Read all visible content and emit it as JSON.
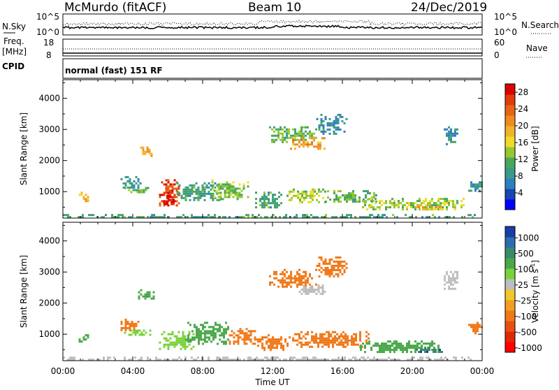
{
  "header": {
    "station": "McMurdo (fitACF)",
    "beam": "Beam 10",
    "date": "24/Dec/2019"
  },
  "noise_panel": {
    "left_label": "N.Sky",
    "right_label": "N.Search",
    "y_ticks_left": [
      "10^5",
      "10^0"
    ],
    "y_ticks_right": [
      "10^5",
      "10^0"
    ]
  },
  "freq_panel": {
    "left_label_line1": "Freq.",
    "left_label_line2": "[MHz]",
    "right_label": "Nave",
    "y_ticks_left": [
      "18",
      "8"
    ],
    "y_ticks_right": [
      "60",
      "0"
    ]
  },
  "cpid_panel": {
    "left_label": "CPID",
    "mode_text": "normal (fast) 151 RF"
  },
  "chart_data": [
    {
      "type": "heatmap",
      "panel": "power",
      "ylabel": "Slant Range [km]",
      "xlabel": "Time UT",
      "y_ticks": [
        "1000",
        "2000",
        "3000",
        "4000"
      ],
      "ylim": [
        150,
        4600
      ],
      "xlim": [
        0,
        24
      ],
      "colorbar": {
        "label": "Power [dB]",
        "ticks": [
          "4",
          "8",
          "12",
          "16",
          "20",
          "24",
          "28"
        ],
        "range": [
          0,
          30
        ],
        "colors": [
          "#0000ff",
          "#1846b0",
          "#2f7fbf",
          "#3a9a8a",
          "#4aa85a",
          "#96c832",
          "#f0dc28",
          "#f0b428",
          "#f08c1e",
          "#e86414",
          "#e03c0a",
          "#dc0000"
        ]
      },
      "echo_regions": [
        {
          "t0": 0.0,
          "t1": 24.0,
          "r0": 180,
          "r1": 280,
          "v": 10
        },
        {
          "t0": 0.9,
          "t1": 1.5,
          "r0": 700,
          "r1": 1000,
          "v": 18
        },
        {
          "t0": 3.3,
          "t1": 4.5,
          "r0": 1150,
          "r1": 1500,
          "v": 8
        },
        {
          "t0": 3.5,
          "t1": 5.0,
          "r0": 950,
          "r1": 1150,
          "v": 12
        },
        {
          "t0": 4.3,
          "t1": 5.2,
          "r0": 2150,
          "r1": 2450,
          "v": 20
        },
        {
          "t0": 5.5,
          "t1": 6.7,
          "r0": 550,
          "r1": 1400,
          "v": 26
        },
        {
          "t0": 5.8,
          "t1": 6.3,
          "r0": 600,
          "r1": 900,
          "v": 29
        },
        {
          "t0": 6.5,
          "t1": 9.0,
          "r0": 700,
          "r1": 1300,
          "v": 10
        },
        {
          "t0": 8.5,
          "t1": 10.6,
          "r0": 750,
          "r1": 1400,
          "v": 13
        },
        {
          "t0": 11.8,
          "t1": 14.5,
          "r0": 2600,
          "r1": 3100,
          "v": 12
        },
        {
          "t0": 13.0,
          "t1": 15.0,
          "r0": 2400,
          "r1": 2750,
          "v": 20
        },
        {
          "t0": 14.5,
          "t1": 16.2,
          "r0": 2850,
          "r1": 3500,
          "v": 8
        },
        {
          "t0": 11.0,
          "t1": 12.5,
          "r0": 500,
          "r1": 1000,
          "v": 10
        },
        {
          "t0": 12.8,
          "t1": 15.0,
          "r0": 650,
          "r1": 1100,
          "v": 14
        },
        {
          "t0": 15.0,
          "t1": 18.0,
          "r0": 700,
          "r1": 1050,
          "v": 12
        },
        {
          "t0": 17.0,
          "t1": 23.0,
          "r0": 400,
          "r1": 800,
          "v": 14
        },
        {
          "t0": 20.2,
          "t1": 21.6,
          "r0": 400,
          "r1": 600,
          "v": 18
        },
        {
          "t0": 21.8,
          "t1": 22.6,
          "r0": 2550,
          "r1": 3100,
          "v": 8
        },
        {
          "t0": 23.2,
          "t1": 24.0,
          "r0": 1050,
          "r1": 1400,
          "v": 8
        }
      ]
    },
    {
      "type": "heatmap",
      "panel": "velocity",
      "ylabel": "Slant Range [km]",
      "xlabel": "Time UT",
      "x_ticks": [
        "00:00",
        "04:00",
        "08:00",
        "12:00",
        "16:00",
        "20:00",
        "00:00"
      ],
      "y_ticks": [
        "1000",
        "2000",
        "3000",
        "4000"
      ],
      "ylim": [
        150,
        4600
      ],
      "xlim": [
        0,
        24
      ],
      "colorbar": {
        "label": "Velocity [m s",
        "label_superscript": "-1",
        "label_close": "]",
        "ticks": [
          "1000",
          "500",
          "100",
          "25",
          "-25",
          "-100",
          "-500",
          "-1000"
        ],
        "colors": [
          "#1a3ca8",
          "#2a6eb0",
          "#3a8a6a",
          "#4aa84a",
          "#7ad23a",
          "#bebebe",
          "#f0c828",
          "#f0a020",
          "#f07818",
          "#e85010",
          "#e02808",
          "#ff0000"
        ]
      },
      "echo_regions": [
        {
          "t0": 0.0,
          "t1": 24.0,
          "r0": 180,
          "r1": 280,
          "v": 0
        },
        {
          "t0": 0.9,
          "t1": 1.5,
          "r0": 700,
          "r1": 1000,
          "v": 300
        },
        {
          "t0": 3.3,
          "t1": 4.3,
          "r0": 1150,
          "r1": 1500,
          "v": -150
        },
        {
          "t0": 3.5,
          "t1": 5.0,
          "r0": 950,
          "r1": 1150,
          "v": 60
        },
        {
          "t0": 4.3,
          "t1": 5.2,
          "r0": 2150,
          "r1": 2450,
          "v": 400
        },
        {
          "t0": 5.5,
          "t1": 7.5,
          "r0": 550,
          "r1": 1100,
          "v": 60
        },
        {
          "t0": 7.0,
          "t1": 9.5,
          "r0": 700,
          "r1": 1400,
          "v": 250
        },
        {
          "t0": 9.5,
          "t1": 11.0,
          "r0": 700,
          "r1": 1200,
          "v": -150
        },
        {
          "t0": 11.8,
          "t1": 14.5,
          "r0": 2500,
          "r1": 3100,
          "v": -150
        },
        {
          "t0": 13.5,
          "t1": 15.0,
          "r0": 2300,
          "r1": 2600,
          "v": 0
        },
        {
          "t0": 14.5,
          "t1": 16.2,
          "r0": 2850,
          "r1": 3500,
          "v": -300
        },
        {
          "t0": 11.0,
          "t1": 13.0,
          "r0": 500,
          "r1": 1000,
          "v": -150
        },
        {
          "t0": 13.0,
          "t1": 17.5,
          "r0": 600,
          "r1": 1100,
          "v": -200
        },
        {
          "t0": 17.0,
          "t1": 21.5,
          "r0": 400,
          "r1": 800,
          "v": 200
        },
        {
          "t0": 20.2,
          "t1": 21.8,
          "r0": 400,
          "r1": 600,
          "v": 800
        },
        {
          "t0": 21.8,
          "t1": 22.6,
          "r0": 2450,
          "r1": 3100,
          "v": 0
        },
        {
          "t0": 23.2,
          "t1": 24.0,
          "r0": 1050,
          "r1": 1400,
          "v": -200
        }
      ]
    }
  ]
}
